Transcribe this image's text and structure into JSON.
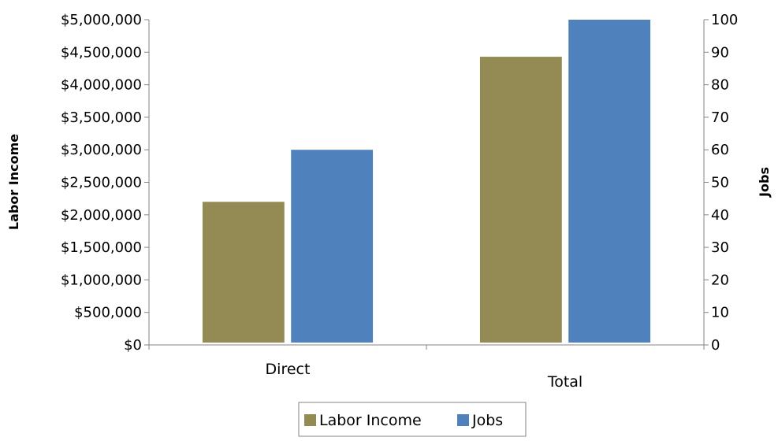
{
  "chart_data": {
    "type": "bar",
    "categories": [
      "Direct",
      "Total"
    ],
    "series": [
      {
        "name": "Labor Income",
        "axis": "left",
        "values": [
          2200000,
          4430000
        ],
        "color": "#948A54"
      },
      {
        "name": "Jobs",
        "axis": "right",
        "values": [
          60,
          100
        ],
        "color": "#4F81BD"
      }
    ],
    "ylabel": "Labor Income",
    "y2label": "Jobs",
    "ylim": [
      0,
      5000000
    ],
    "y2lim": [
      0,
      100
    ],
    "yticks": [
      "$0",
      "$500,000",
      "$1,000,000",
      "$1,500,000",
      "$2,000,000",
      "$2,500,000",
      "$3,000,000",
      "$3,500,000",
      "$4,000,000",
      "$4,500,000",
      "$5,000,000"
    ],
    "y2ticks": [
      "0",
      "10",
      "20",
      "30",
      "40",
      "50",
      "60",
      "70",
      "80",
      "90",
      "100"
    ],
    "grid": false,
    "legend": "bottom"
  }
}
